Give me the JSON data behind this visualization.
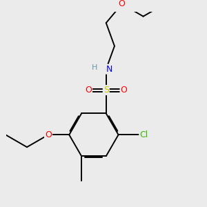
{
  "bg_color": "#ebebeb",
  "bond_color": "#000000",
  "atom_colors": {
    "O": "#ff0000",
    "N": "#0000ff",
    "S": "#cccc00",
    "Cl": "#33bb00",
    "C": "#000000",
    "H": "#6699aa"
  },
  "bond_width": 1.4,
  "dbo": 0.018,
  "figsize": [
    3.0,
    3.0
  ],
  "dpi": 100,
  "xlim": [
    0,
    3.0
  ],
  "ylim": [
    0,
    3.0
  ]
}
